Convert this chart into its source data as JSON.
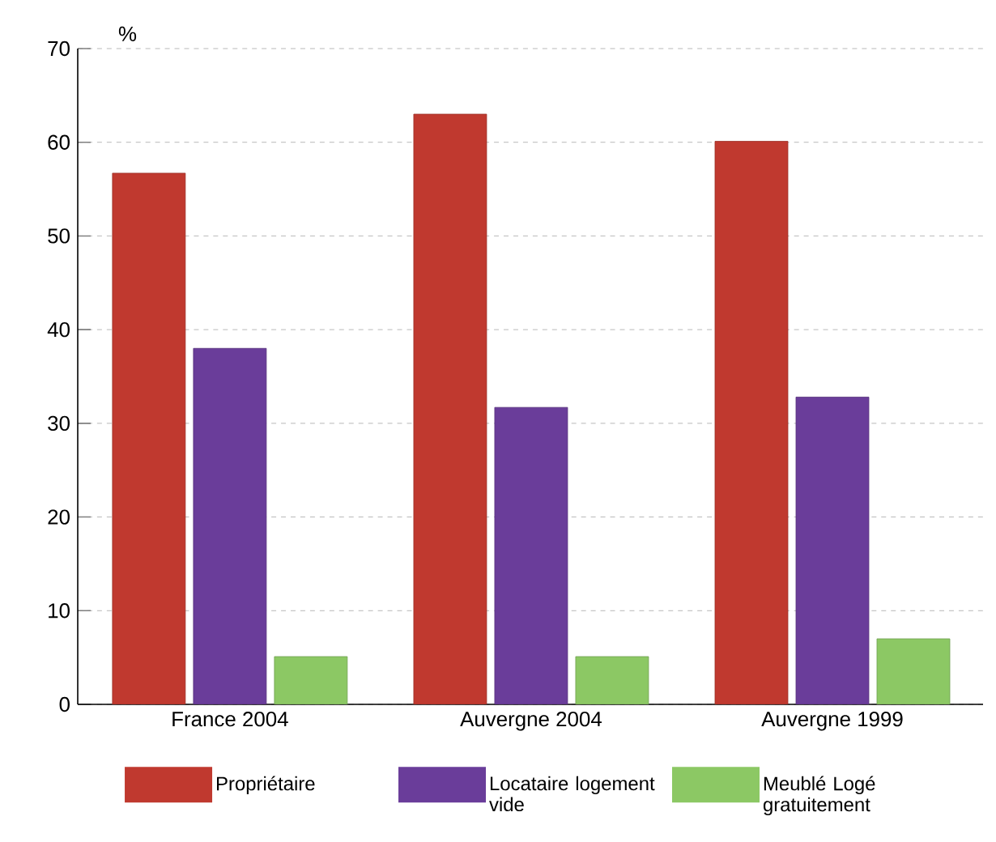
{
  "chart_data": {
    "type": "bar",
    "ylabel": "%",
    "categories": [
      "France 2004",
      "Auvergne 2004",
      "Auvergne 1999"
    ],
    "series": [
      {
        "name": "Propriétaire",
        "color": "#c0392f",
        "values": [
          56.7,
          63.0,
          60.1
        ]
      },
      {
        "name": "Locataire logement vide",
        "color": "#6a3d9a",
        "values": [
          38.0,
          31.7,
          32.8
        ]
      },
      {
        "name": "Meublé Logé gratuitement",
        "color": "#8cc864",
        "values": [
          5.1,
          5.1,
          7.0
        ]
      }
    ],
    "ylim": [
      0,
      70
    ],
    "yticks": [
      0,
      10,
      20,
      30,
      40,
      50,
      60,
      70
    ],
    "grid": "y",
    "legend": "bottom"
  }
}
